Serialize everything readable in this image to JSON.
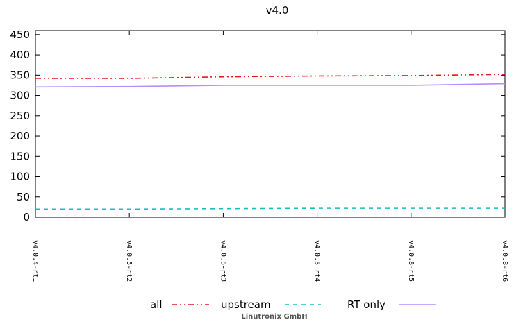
{
  "chart_data": {
    "type": "line",
    "title": "v4.0",
    "xlabel": "",
    "ylabel": "",
    "categories": [
      "v4.0.4-rt1",
      "v4.0.5-rt2",
      "v4.0.5-rt3",
      "v4.0.5-rt4",
      "v4.0.8-rt5",
      "v4.0.8-rt6"
    ],
    "ylim": [
      0,
      460
    ],
    "yticks": [
      "0",
      "50",
      "100",
      "150",
      "200",
      "250",
      "300",
      "350",
      "400",
      "450"
    ],
    "grid": false,
    "legend_position": "bottom",
    "series": [
      {
        "name": "all",
        "values": [
          342,
          342,
          346,
          348,
          349,
          352
        ],
        "color": "#e41a1c",
        "dash": "dash-dot-dot"
      },
      {
        "name": "upstream",
        "values": [
          20,
          20,
          21,
          22,
          22,
          22
        ],
        "color": "#17bfbf",
        "dash": "dashed"
      },
      {
        "name": "RT only",
        "values": [
          321,
          322,
          325,
          325,
          325,
          329
        ],
        "color": "#b88cff",
        "dash": "solid"
      }
    ]
  },
  "footer": {
    "credit": "Linutronix GmbH"
  }
}
